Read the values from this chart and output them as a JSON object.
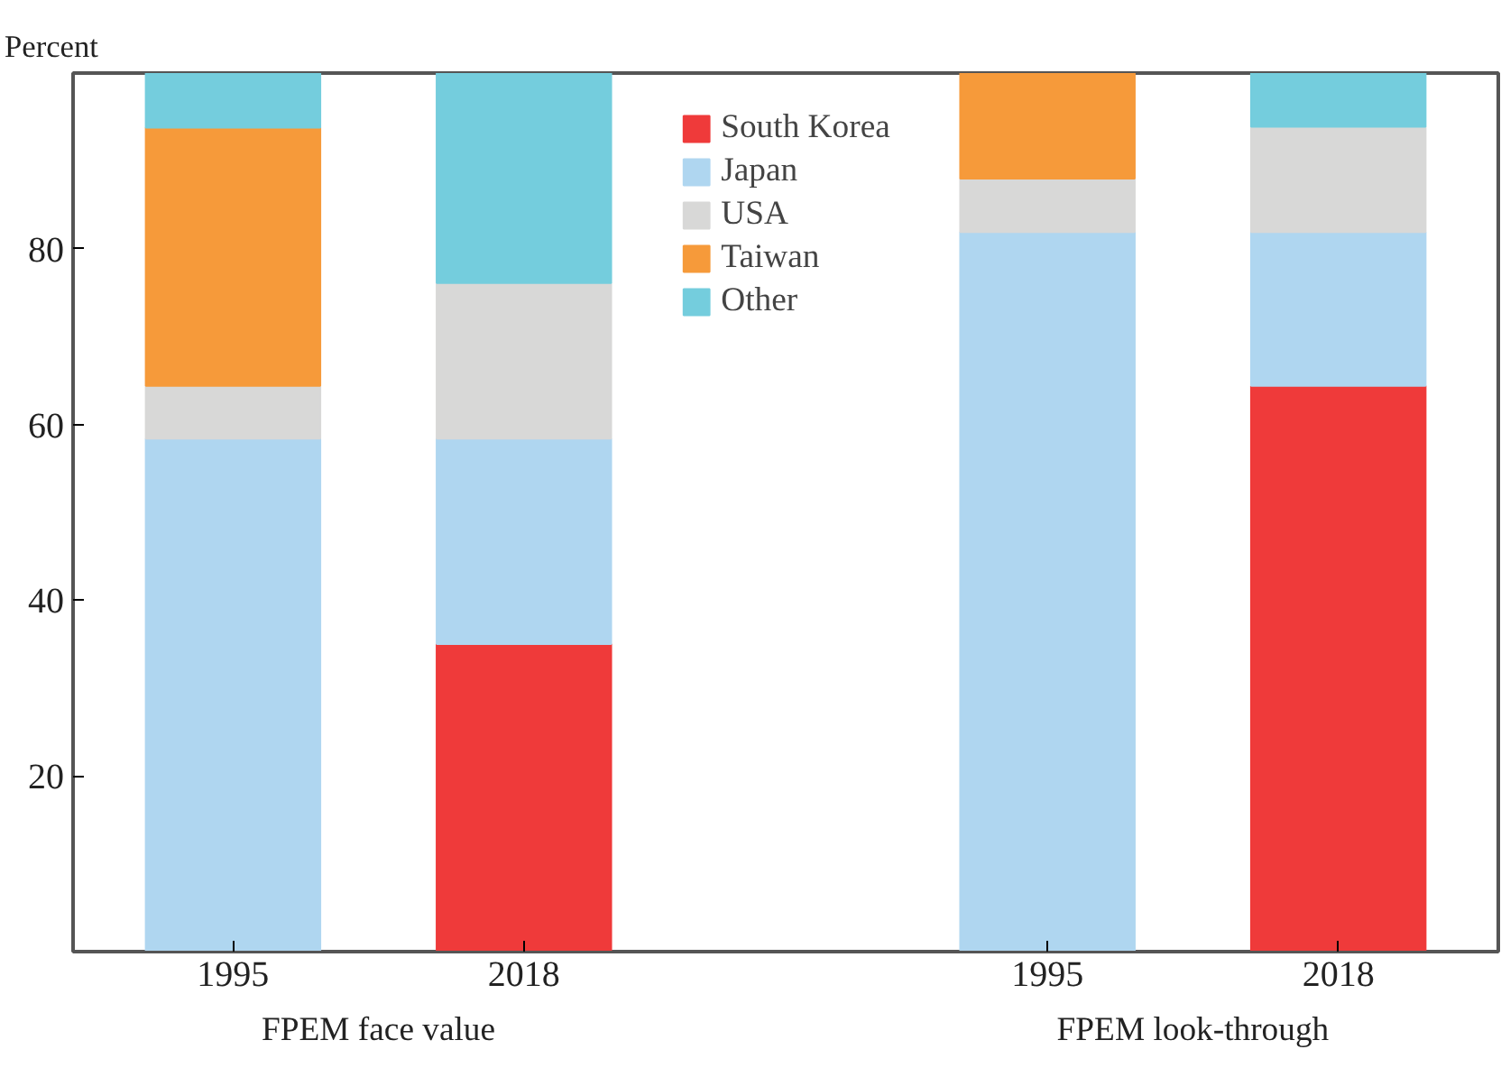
{
  "chart_data": {
    "type": "bar",
    "stacked": true,
    "ylabel": "Percent",
    "categories": [
      "1995",
      "2018",
      "1995",
      "2018"
    ],
    "annotations": [
      "FPEM face value",
      "FPEM look-through"
    ],
    "series": [
      {
        "name": "South Korea",
        "color": "#ef3a3a",
        "values": [
          0,
          35.0,
          0,
          64.4
        ]
      },
      {
        "name": "Japan",
        "color": "#afd6f0",
        "values": [
          58.4,
          23.4,
          81.9,
          17.5
        ]
      },
      {
        "name": "USA",
        "color": "#d8d8d7",
        "values": [
          6.0,
          17.7,
          6.1,
          12.0
        ]
      },
      {
        "name": "Taiwan",
        "color": "#f69a3a",
        "values": [
          29.4,
          0,
          12.0,
          0
        ]
      },
      {
        "name": "Other",
        "color": "#74cddd",
        "values": [
          6.2,
          23.9,
          0,
          6.1
        ]
      }
    ],
    "ylim": [
      0,
      100
    ],
    "yticks": [
      20,
      40,
      60,
      80
    ],
    "grid": false,
    "legend": "top"
  }
}
